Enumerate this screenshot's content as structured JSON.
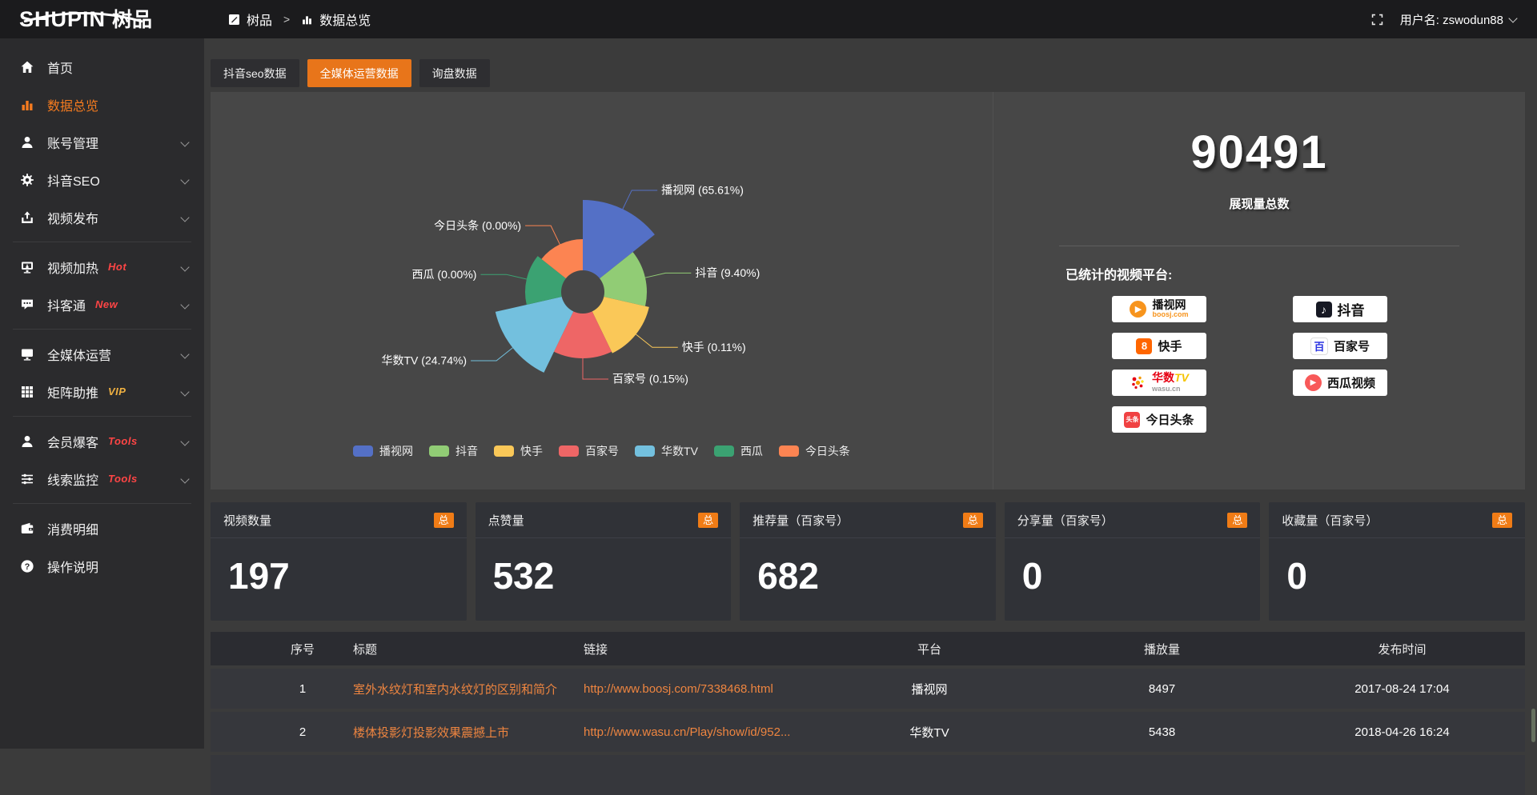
{
  "topbar": {
    "logo_en": "SHUPIN",
    "logo_cn": "树品",
    "breadcrumb": {
      "root": "树品",
      "separator": ">",
      "current": "数据总览"
    },
    "username": "用户名: zswodun88"
  },
  "sidebar": {
    "items": [
      {
        "label": "首页"
      },
      {
        "label": "数据总览"
      },
      {
        "label": "账号管理"
      },
      {
        "label": "抖音SEO"
      },
      {
        "label": "视频发布"
      },
      {
        "label": "视频加热",
        "badge": "Hot"
      },
      {
        "label": "抖客通",
        "badge": "New"
      },
      {
        "label": "全媒体运营"
      },
      {
        "label": "矩阵助推",
        "badge": "VIP"
      },
      {
        "label": "会员爆客",
        "badge": "Tools"
      },
      {
        "label": "线索监控",
        "badge": "Tools"
      },
      {
        "label": "消费明细"
      },
      {
        "label": "操作说明"
      }
    ]
  },
  "tabs": [
    {
      "label": "抖音seo数据"
    },
    {
      "label": "全媒体运营数据",
      "active": true
    },
    {
      "label": "询盘数据"
    }
  ],
  "chart_data": {
    "type": "pie",
    "variant": "nightingale-rose",
    "series": [
      {
        "name": "播视网",
        "percent": 65.61,
        "color": "#5470c6",
        "radius": 115
      },
      {
        "name": "抖音",
        "percent": 9.4,
        "color": "#91cc75",
        "radius": 80
      },
      {
        "name": "快手",
        "percent": 0.11,
        "color": "#fac858",
        "radius": 85
      },
      {
        "name": "百家号",
        "percent": 0.15,
        "color": "#ee6666",
        "radius": 83
      },
      {
        "name": "华数TV",
        "percent": 24.74,
        "color": "#73c0de",
        "radius": 112
      },
      {
        "name": "西瓜",
        "percent": 0,
        "color": "#3ba272",
        "radius": 72
      },
      {
        "name": "今日头条",
        "percent": 0,
        "color": "#fc8452",
        "radius": 66
      }
    ],
    "inner_radius": 27,
    "equal_angles": true,
    "start_angle": "north-clockwise",
    "legend_position": "bottom",
    "label_format": "{name} ({percent}%)"
  },
  "summary": {
    "total": "90491",
    "total_label": "展现量总数",
    "platforms_label": "已统计的视频平台:",
    "platforms": [
      {
        "name": "播视网",
        "sub": "boosj.com",
        "logo_glyph": "▶"
      },
      {
        "name": "快手",
        "logo_glyph": "8"
      },
      {
        "name_part1": "华数",
        "name_part2": "TV",
        "sub": "wasu.cn"
      },
      {
        "name": "今日头条",
        "logo_text": "头条"
      },
      {
        "name": "抖音",
        "logo_glyph": "♪"
      },
      {
        "name": "百家号",
        "logo_glyph": "百"
      },
      {
        "name": "西瓜视频",
        "logo_glyph": "▶"
      }
    ]
  },
  "stat_cards": [
    {
      "title": "视频数量",
      "badge": "总",
      "value": "197"
    },
    {
      "title": "点赞量",
      "badge": "总",
      "value": "532"
    },
    {
      "title": "推荐量（百家号）",
      "badge": "总",
      "value": "682"
    },
    {
      "title": "分享量（百家号）",
      "badge": "总",
      "value": "0"
    },
    {
      "title": "收藏量（百家号）",
      "badge": "总",
      "value": "0"
    }
  ],
  "table": {
    "headers": [
      "序号",
      "标题",
      "链接",
      "平台",
      "播放量",
      "发布时间"
    ],
    "rows": [
      {
        "num": "1",
        "title": "室外水纹灯和室内水纹灯的区别和简介",
        "link": "http://www.boosj.com/7338468.html",
        "platform": "播视网",
        "views": "8497",
        "time": "2017-08-24 17:04"
      },
      {
        "num": "2",
        "title": "楼体投影灯投影效果震撼上市",
        "link": "http://www.wasu.cn/Play/show/id/952...",
        "platform": "华数TV",
        "views": "5438",
        "time": "2018-04-26 16:24"
      }
    ]
  }
}
